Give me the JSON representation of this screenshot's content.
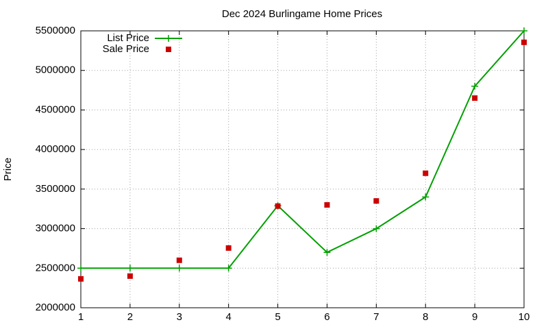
{
  "chart_data": {
    "type": "line",
    "title": "Dec 2024 Burlingame Home Prices",
    "y_label": "Price",
    "x": [
      1,
      2,
      3,
      4,
      5,
      6,
      7,
      8,
      9,
      10
    ],
    "series": [
      {
        "name": "List Price",
        "color": "#00a000",
        "mode": "lines+markers",
        "marker": "plus",
        "values": [
          2500000,
          2500000,
          2500000,
          2500000,
          3290000,
          2700000,
          3000000,
          3400000,
          4800000,
          5500000
        ]
      },
      {
        "name": "Sale Price",
        "color": "#cc0000",
        "mode": "markers",
        "marker": "square",
        "values": [
          2365000,
          2400000,
          2600000,
          2755000,
          3285000,
          3300000,
          3350000,
          3700000,
          4650000,
          5355000
        ]
      }
    ],
    "xlim": [
      1,
      10
    ],
    "xticks": [
      1,
      2,
      3,
      4,
      5,
      6,
      7,
      8,
      9,
      10
    ],
    "ylim": [
      2000000,
      5500000
    ],
    "yticks": [
      2000000,
      2500000,
      3000000,
      3500000,
      4000000,
      4500000,
      5000000,
      5500000
    ],
    "grid": true,
    "legend": "top-left"
  }
}
